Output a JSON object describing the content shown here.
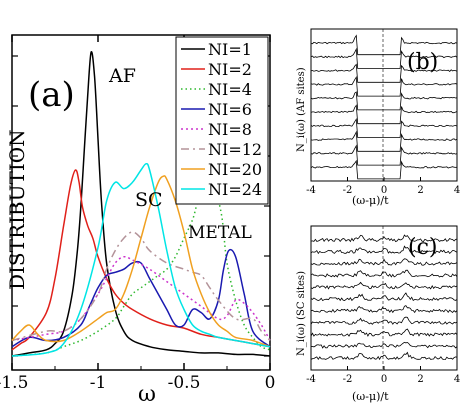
{
  "chart_data": [
    {
      "panel": "a",
      "type": "line",
      "panel_label": "(a)",
      "xlabel": "ω",
      "ylabel": "DISTRIBUTION",
      "xlim": [
        -1.5,
        0
      ],
      "x_ticks": [
        -1.5,
        -1,
        -0.5,
        0
      ],
      "x_tick_labels": [
        "-1.5",
        "-1",
        "-0.5",
        "0"
      ],
      "annotations": [
        "AF",
        "SC",
        "METAL"
      ],
      "legend": "top-right",
      "series": [
        {
          "name": "NI=1",
          "color": "#000000",
          "dash": "",
          "x": [
            -1.5,
            -1.4,
            -1.3,
            -1.25,
            -1.2,
            -1.15,
            -1.12,
            -1.1,
            -1.08,
            -1.06,
            -1.04,
            -1.02,
            -1.0,
            -0.98,
            -0.95,
            -0.9,
            -0.85,
            -0.8,
            -0.7,
            -0.6,
            -0.5,
            -0.4,
            -0.3,
            -0.2,
            -0.1,
            0
          ],
          "y": [
            0.0,
            0.01,
            0.02,
            0.04,
            0.08,
            0.2,
            0.34,
            0.48,
            0.66,
            0.84,
            0.98,
            0.9,
            0.7,
            0.5,
            0.3,
            0.15,
            0.08,
            0.05,
            0.03,
            0.02,
            0.015,
            0.01,
            0.01,
            0.005,
            0.005,
            0.0
          ]
        },
        {
          "name": "NI=2",
          "color": "#e0201a",
          "dash": "",
          "x": [
            -1.5,
            -1.45,
            -1.4,
            -1.3,
            -1.25,
            -1.2,
            -1.16,
            -1.13,
            -1.11,
            -1.09,
            -1.06,
            -1.03,
            -1.0,
            -0.95,
            -0.9,
            -0.85,
            -0.8,
            -0.7,
            -0.6,
            -0.5,
            -0.4,
            -0.3,
            -0.2,
            -0.1,
            0
          ],
          "y": [
            0.02,
            0.04,
            0.06,
            0.14,
            0.25,
            0.42,
            0.55,
            0.6,
            0.56,
            0.48,
            0.42,
            0.38,
            0.32,
            0.25,
            0.2,
            0.17,
            0.15,
            0.12,
            0.1,
            0.09,
            0.07,
            0.06,
            0.05,
            0.04,
            0.03
          ]
        },
        {
          "name": "NI=4",
          "color": "#2eb82e",
          "dash": "1.5,3",
          "x": [
            -1.5,
            -1.3,
            -1.2,
            -1.1,
            -1.0,
            -0.9,
            -0.85,
            -0.8,
            -0.75,
            -0.7,
            -0.65,
            -0.6,
            -0.55,
            -0.5,
            -0.45,
            -0.42,
            -0.38,
            -0.35,
            -0.32,
            -0.28,
            -0.25,
            -0.2,
            -0.15,
            -0.1,
            -0.05,
            0
          ],
          "y": [
            0.0,
            0.01,
            0.03,
            0.05,
            0.08,
            0.12,
            0.16,
            0.2,
            0.22,
            0.24,
            0.26,
            0.28,
            0.32,
            0.38,
            0.44,
            0.5,
            0.56,
            0.58,
            0.54,
            0.45,
            0.3,
            0.18,
            0.1,
            0.06,
            0.03,
            0.02
          ]
        },
        {
          "name": "NI=6",
          "color": "#1a1ab0",
          "dash": "",
          "x": [
            -1.5,
            -1.4,
            -1.3,
            -1.2,
            -1.1,
            -1.05,
            -1.0,
            -0.95,
            -0.9,
            -0.85,
            -0.8,
            -0.75,
            -0.7,
            -0.65,
            -0.6,
            -0.55,
            -0.5,
            -0.45,
            -0.4,
            -0.35,
            -0.3,
            -0.27,
            -0.24,
            -0.2,
            -0.15,
            -0.1,
            0
          ],
          "y": [
            0.03,
            0.06,
            0.05,
            0.06,
            0.1,
            0.16,
            0.22,
            0.26,
            0.27,
            0.28,
            0.3,
            0.3,
            0.25,
            0.2,
            0.15,
            0.1,
            0.1,
            0.15,
            0.14,
            0.12,
            0.18,
            0.28,
            0.34,
            0.32,
            0.2,
            0.08,
            0.03
          ]
        },
        {
          "name": "NI=8",
          "color": "#cc33cc",
          "dash": "2,3",
          "x": [
            -1.5,
            -1.3,
            -1.2,
            -1.1,
            -1.0,
            -0.95,
            -0.9,
            -0.85,
            -0.8,
            -0.7,
            -0.6,
            -0.5,
            -0.4,
            -0.3,
            -0.25,
            -0.2,
            -0.15,
            -0.1,
            -0.05,
            0
          ],
          "y": [
            0.05,
            0.07,
            0.08,
            0.12,
            0.2,
            0.25,
            0.3,
            0.32,
            0.31,
            0.28,
            0.24,
            0.2,
            0.16,
            0.12,
            0.13,
            0.18,
            0.17,
            0.14,
            0.1,
            0.05
          ]
        },
        {
          "name": "NI=12",
          "color": "#b39399",
          "dash": "8,4,2,4",
          "x": [
            -1.5,
            -1.3,
            -1.2,
            -1.1,
            -1.0,
            -0.95,
            -0.9,
            -0.85,
            -0.8,
            -0.75,
            -0.7,
            -0.6,
            -0.5,
            -0.45,
            -0.4,
            -0.35,
            -0.3,
            -0.2,
            -0.1,
            -0.05,
            0
          ],
          "y": [
            0.05,
            0.08,
            0.08,
            0.12,
            0.2,
            0.28,
            0.34,
            0.38,
            0.4,
            0.38,
            0.34,
            0.3,
            0.28,
            0.27,
            0.26,
            0.22,
            0.18,
            0.12,
            0.12,
            0.08,
            0.05
          ]
        },
        {
          "name": "NI=20",
          "color": "#f0a020",
          "dash": "",
          "x": [
            -1.5,
            -1.45,
            -1.4,
            -1.35,
            -1.3,
            -1.2,
            -1.1,
            -1.0,
            -0.95,
            -0.9,
            -0.85,
            -0.8,
            -0.75,
            -0.7,
            -0.65,
            -0.62,
            -0.6,
            -0.55,
            -0.5,
            -0.45,
            -0.4,
            -0.35,
            -0.3,
            -0.25,
            -0.2,
            -0.1,
            0
          ],
          "y": [
            0.05,
            0.08,
            0.1,
            0.07,
            0.05,
            0.05,
            0.08,
            0.12,
            0.14,
            0.15,
            0.2,
            0.28,
            0.38,
            0.48,
            0.56,
            0.58,
            0.57,
            0.5,
            0.4,
            0.28,
            0.2,
            0.14,
            0.1,
            0.08,
            0.06,
            0.05,
            0.03
          ]
        },
        {
          "name": "NI=24",
          "color": "#00e5e5",
          "dash": "",
          "x": [
            -1.5,
            -1.3,
            -1.2,
            -1.1,
            -1.0,
            -0.95,
            -0.9,
            -0.85,
            -0.8,
            -0.75,
            -0.72,
            -0.7,
            -0.65,
            -0.6,
            -0.55,
            -0.5,
            -0.45,
            -0.4,
            -0.35,
            -0.3,
            -0.2,
            -0.1,
            0
          ],
          "y": [
            0.0,
            0.01,
            0.04,
            0.15,
            0.35,
            0.5,
            0.56,
            0.54,
            0.56,
            0.6,
            0.62,
            0.6,
            0.48,
            0.34,
            0.22,
            0.15,
            0.1,
            0.08,
            0.07,
            0.06,
            0.05,
            0.04,
            0.03
          ]
        }
      ]
    },
    {
      "panel": "b",
      "type": "line",
      "panel_label": "(b)",
      "ylabel": "N_i(ω) (AF sites)",
      "xlabel": "(ω-μ)/t",
      "xlim": [
        -4,
        4
      ],
      "x_tick_labels": [
        "-4",
        "-2",
        "0",
        "2",
        "4"
      ],
      "gap": [
        -1.5,
        0.9
      ],
      "n_traces": 10
    },
    {
      "panel": "c",
      "type": "line",
      "panel_label": "(c)",
      "ylabel": "N_i(ω) (SC sites)",
      "xlabel": "(ω-μ)/t",
      "xlim": [
        -4,
        4
      ],
      "x_tick_labels": [
        "-4",
        "-2",
        "0",
        "2",
        "4"
      ],
      "n_traces": 11
    }
  ]
}
